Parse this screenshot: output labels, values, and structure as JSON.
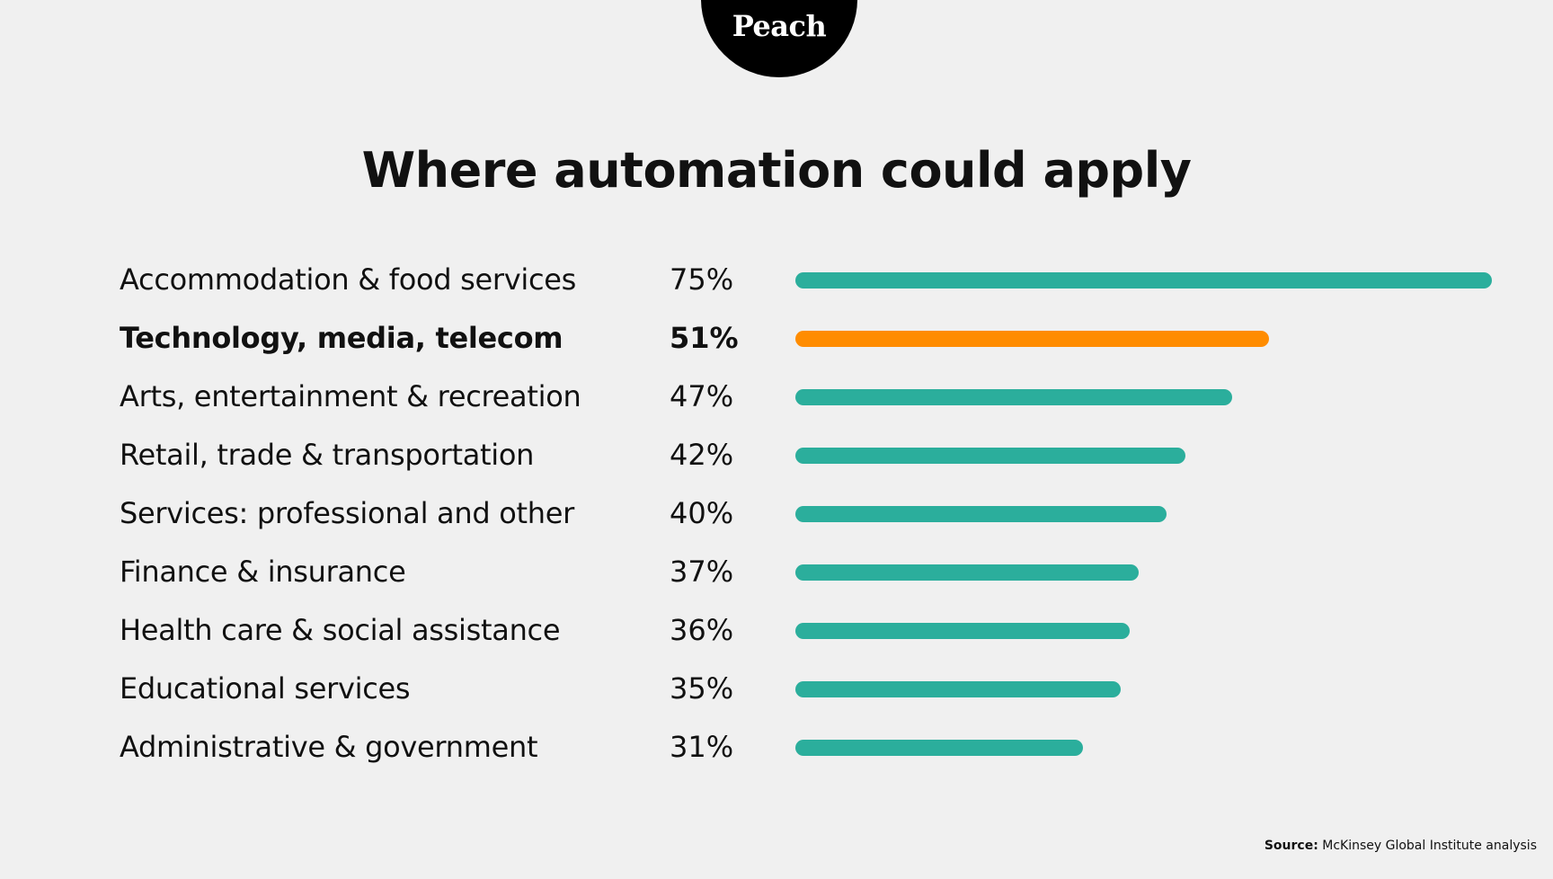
{
  "logo": {
    "text": "Peach"
  },
  "chart_data": {
    "type": "bar",
    "orientation": "horizontal",
    "title": "Where automation could apply",
    "xlabel": "",
    "ylabel": "",
    "xlim": [
      0,
      75
    ],
    "grid": false,
    "categories": [
      "Accommodation & food services",
      "Technology, media, telecom",
      "Arts, entertainment & recreation",
      "Retail, trade & transportation",
      "Services: professional and other",
      "Finance & insurance",
      "Health care & social assistance",
      "Educational services",
      "Administrative & government"
    ],
    "values": [
      75,
      51,
      47,
      42,
      40,
      37,
      36,
      35,
      31
    ],
    "value_labels": [
      "75%",
      "51%",
      "47%",
      "42%",
      "40%",
      "37%",
      "36%",
      "35%",
      "31%"
    ],
    "highlight_index": 1,
    "colors": {
      "default": "#2bae9c",
      "highlight": "#ff8c00"
    }
  },
  "source": {
    "label": "Source:",
    "text": "McKinsey Global Institute analysis"
  }
}
